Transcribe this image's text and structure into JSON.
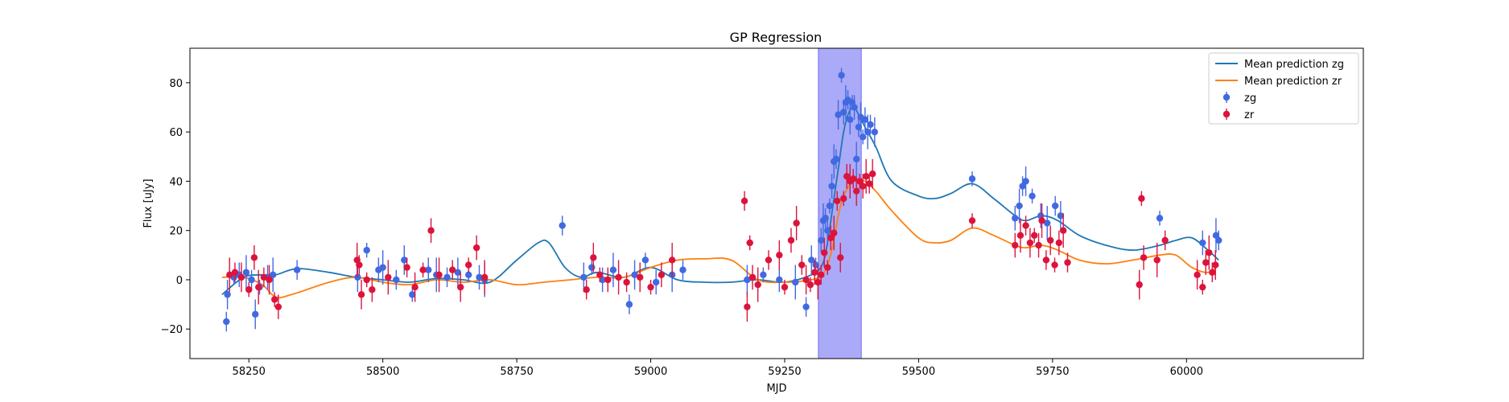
{
  "chart_data": {
    "type": "scatter",
    "title": "GP Regression",
    "xlabel": "MJD",
    "ylabel": "Flux [uJy]",
    "xlim": [
      58140,
      60330
    ],
    "ylim": [
      -32,
      94
    ],
    "xticks": [
      58250,
      58500,
      58750,
      59000,
      59250,
      59500,
      59750,
      60000
    ],
    "yticks": [
      -20,
      0,
      20,
      40,
      60,
      80
    ],
    "grid": false,
    "legend_position": "top-right",
    "highlight_span": {
      "x0": 59313,
      "x1": 59393,
      "color": "#aaaaf8"
    },
    "legend": [
      {
        "label": "Mean prediction zg",
        "kind": "line",
        "color": "#1f77b4"
      },
      {
        "label": "Mean prediction zr",
        "kind": "line",
        "color": "#ff7f0e"
      },
      {
        "label": "zg",
        "kind": "errorbar",
        "color": "#4169e1"
      },
      {
        "label": "zr",
        "kind": "errorbar",
        "color": "#dc143c"
      }
    ],
    "series": [
      {
        "name": "Mean prediction zg",
        "kind": "line",
        "color": "#1f77b4",
        "x": [
          58200,
          58240,
          58275,
          58300,
          58340,
          58400,
          58450,
          58500,
          58550,
          58600,
          58650,
          58700,
          58750,
          58790,
          58810,
          58840,
          58870,
          58900,
          58950,
          59000,
          59050,
          59100,
          59150,
          59200,
          59250,
          59300,
          59320,
          59330,
          59340,
          59350,
          59360,
          59370,
          59380,
          59390,
          59400,
          59420,
          59450,
          59500,
          59530,
          59560,
          59600,
          59640,
          59680,
          59700,
          59730,
          59760,
          59800,
          59850,
          59900,
          59950,
          59980,
          60010,
          60040,
          60060
        ],
        "y": [
          -6,
          1,
          2,
          2,
          4.5,
          3,
          1,
          0,
          -1,
          0.5,
          0,
          -1,
          8,
          15,
          15,
          5,
          1,
          3,
          1,
          5,
          0,
          -1,
          -1,
          0,
          -1,
          2,
          6,
          15,
          30,
          45,
          60,
          68,
          70,
          66,
          62,
          54,
          40,
          34,
          33,
          35,
          39,
          33,
          26,
          24,
          26,
          24,
          18,
          14,
          12,
          14,
          16,
          17,
          12,
          8
        ]
      },
      {
        "name": "Mean prediction zr",
        "kind": "line",
        "color": "#ff7f0e",
        "x": [
          58200,
          58240,
          58275,
          58300,
          58330,
          58400,
          58450,
          58500,
          58550,
          58600,
          58650,
          58700,
          58750,
          58800,
          58850,
          58900,
          58950,
          59000,
          59050,
          59100,
          59150,
          59200,
          59250,
          59300,
          59320,
          59330,
          59340,
          59350,
          59360,
          59370,
          59380,
          59390,
          59400,
          59420,
          59450,
          59500,
          59530,
          59560,
          59600,
          59640,
          59680,
          59700,
          59730,
          59760,
          59800,
          59850,
          59900,
          59950,
          59980,
          60010,
          60040,
          60060
        ],
        "y": [
          1,
          1,
          -2,
          -7,
          -6,
          -1,
          1,
          -1,
          -2,
          0,
          -1,
          0,
          -2,
          -1,
          0,
          1,
          1,
          5,
          8,
          8.5,
          8,
          0,
          -1,
          0,
          2,
          6,
          14,
          26,
          34,
          38,
          40,
          40,
          40,
          36,
          28,
          17,
          15,
          16,
          21,
          18,
          14,
          13,
          14,
          12,
          8,
          6.5,
          8,
          10,
          10,
          5,
          3,
          6
        ]
      },
      {
        "name": "zg",
        "kind": "errorbar",
        "color": "#4169e1",
        "x": [
          58208,
          58210,
          58222,
          58232,
          58245,
          58255,
          58262,
          58270,
          58285,
          58295,
          58340,
          58453,
          58470,
          58492,
          58500,
          58525,
          58540,
          58555,
          58585,
          58600,
          58620,
          58640,
          58660,
          58680,
          58690,
          58835,
          58875,
          58890,
          58910,
          58930,
          58960,
          58970,
          58990,
          59010,
          59040,
          59060,
          59180,
          59210,
          59240,
          59270,
          59290,
          59300,
          59308,
          59318,
          59322,
          59326,
          59330,
          59334,
          59338,
          59342,
          59346,
          59350,
          59356,
          59360,
          59364,
          59368,
          59372,
          59376,
          59380,
          59384,
          59388,
          59392,
          59396,
          59400,
          59405,
          59410,
          59418,
          59600,
          59680,
          59688,
          59694,
          59700,
          59712,
          59728,
          59740,
          59755,
          59765,
          59950,
          60030,
          60055,
          60060
        ],
        "y": [
          -17,
          -6,
          1,
          2,
          3,
          0,
          -14,
          -3,
          1,
          2,
          4,
          1,
          12,
          4,
          5,
          0,
          8,
          -6,
          4,
          2,
          1,
          3,
          2,
          1,
          0,
          22,
          1,
          5,
          0,
          4,
          -10,
          2,
          8,
          -1,
          2,
          4,
          0,
          2,
          0,
          -1,
          -11,
          8,
          6,
          16,
          24,
          25,
          20,
          30,
          38,
          48,
          49,
          67,
          83,
          68,
          72,
          73,
          65,
          72,
          70,
          49,
          62,
          66,
          58,
          65,
          60,
          63,
          60,
          41,
          25,
          30,
          38,
          40,
          34,
          26,
          23,
          30,
          26,
          25,
          15,
          18,
          16
        ]
      },
      {
        "name": "zr",
        "kind": "errorbar",
        "color": "#dc143c",
        "x": [
          58214,
          58224,
          58236,
          58250,
          58260,
          58268,
          58278,
          58288,
          58298,
          58305,
          58452,
          58456,
          58460,
          58470,
          58480,
          58510,
          58545,
          58560,
          58575,
          58590,
          58605,
          58630,
          58645,
          58660,
          58675,
          58690,
          58880,
          58893,
          58905,
          58920,
          58940,
          58955,
          58980,
          59000,
          59020,
          59040,
          59175,
          59180,
          59185,
          59190,
          59200,
          59220,
          59240,
          59250,
          59262,
          59272,
          59282,
          59290,
          59298,
          59306,
          59312,
          59318,
          59324,
          59330,
          59336,
          59342,
          59348,
          59354,
          59360,
          59366,
          59372,
          59378,
          59384,
          59390,
          59396,
          59402,
          59408,
          59414,
          59600,
          59680,
          59690,
          59700,
          59708,
          59716,
          59724,
          59730,
          59738,
          59746,
          59754,
          59762,
          59770,
          59778,
          59912,
          59916,
          59920,
          59945,
          59960,
          60020,
          60030,
          60036,
          60042,
          60048,
          60054
        ],
        "y": [
          2,
          3,
          1,
          -4,
          9,
          -3,
          1,
          0,
          -8,
          -11,
          8,
          6,
          -6,
          0,
          -4,
          1,
          5,
          -3,
          4,
          20,
          2,
          4,
          -3,
          6,
          13,
          1,
          -4,
          9,
          2,
          0,
          1,
          -1,
          1,
          -3,
          2,
          8,
          32,
          -11,
          15,
          1,
          -2,
          8,
          10,
          -3,
          16,
          23,
          6,
          0,
          -2,
          3,
          -1,
          2,
          11,
          5,
          17,
          19,
          32,
          9,
          33,
          42,
          40,
          41,
          36,
          40,
          38,
          42,
          39,
          43,
          24,
          14,
          18,
          22,
          15,
          18,
          14,
          24,
          8,
          16,
          6,
          15,
          20,
          7,
          -2,
          33,
          9,
          8,
          16,
          2,
          -3,
          7,
          11,
          3,
          6
        ]
      }
    ]
  }
}
